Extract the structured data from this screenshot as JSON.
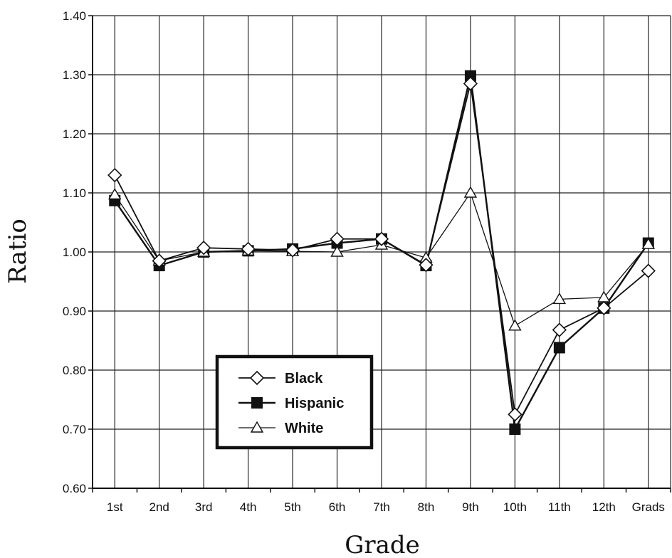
{
  "chart_data": {
    "type": "line",
    "title": "",
    "xlabel": "Grade",
    "ylabel": "Ratio",
    "categories": [
      "1st",
      "2nd",
      "3rd",
      "4th",
      "5th",
      "6th",
      "7th",
      "8th",
      "9th",
      "10th",
      "11th",
      "12th",
      "Grads"
    ],
    "ylim": [
      0.6,
      1.4
    ],
    "yticks": [
      "0.60",
      "0.70",
      "0.80",
      "0.90",
      "1.00",
      "1.10",
      "1.20",
      "1.30",
      "1.40"
    ],
    "grid": true,
    "legend_position": "lower-center",
    "series": [
      {
        "name": "Black",
        "marker": "diamond-open",
        "values": [
          1.13,
          0.985,
          1.007,
          1.005,
          1.003,
          1.022,
          1.022,
          0.978,
          1.285,
          0.725,
          0.868,
          0.905,
          0.968
        ]
      },
      {
        "name": "Hispanic",
        "marker": "square-filled",
        "values": [
          1.087,
          0.977,
          1.0,
          1.002,
          1.005,
          1.015,
          1.022,
          0.977,
          1.298,
          0.7,
          0.838,
          0.905,
          1.015
        ]
      },
      {
        "name": "White",
        "marker": "triangle-open",
        "values": [
          1.097,
          0.985,
          1.0,
          1.002,
          1.001,
          1.0,
          1.012,
          0.99,
          1.1,
          0.875,
          0.92,
          0.923,
          1.013
        ]
      }
    ]
  }
}
